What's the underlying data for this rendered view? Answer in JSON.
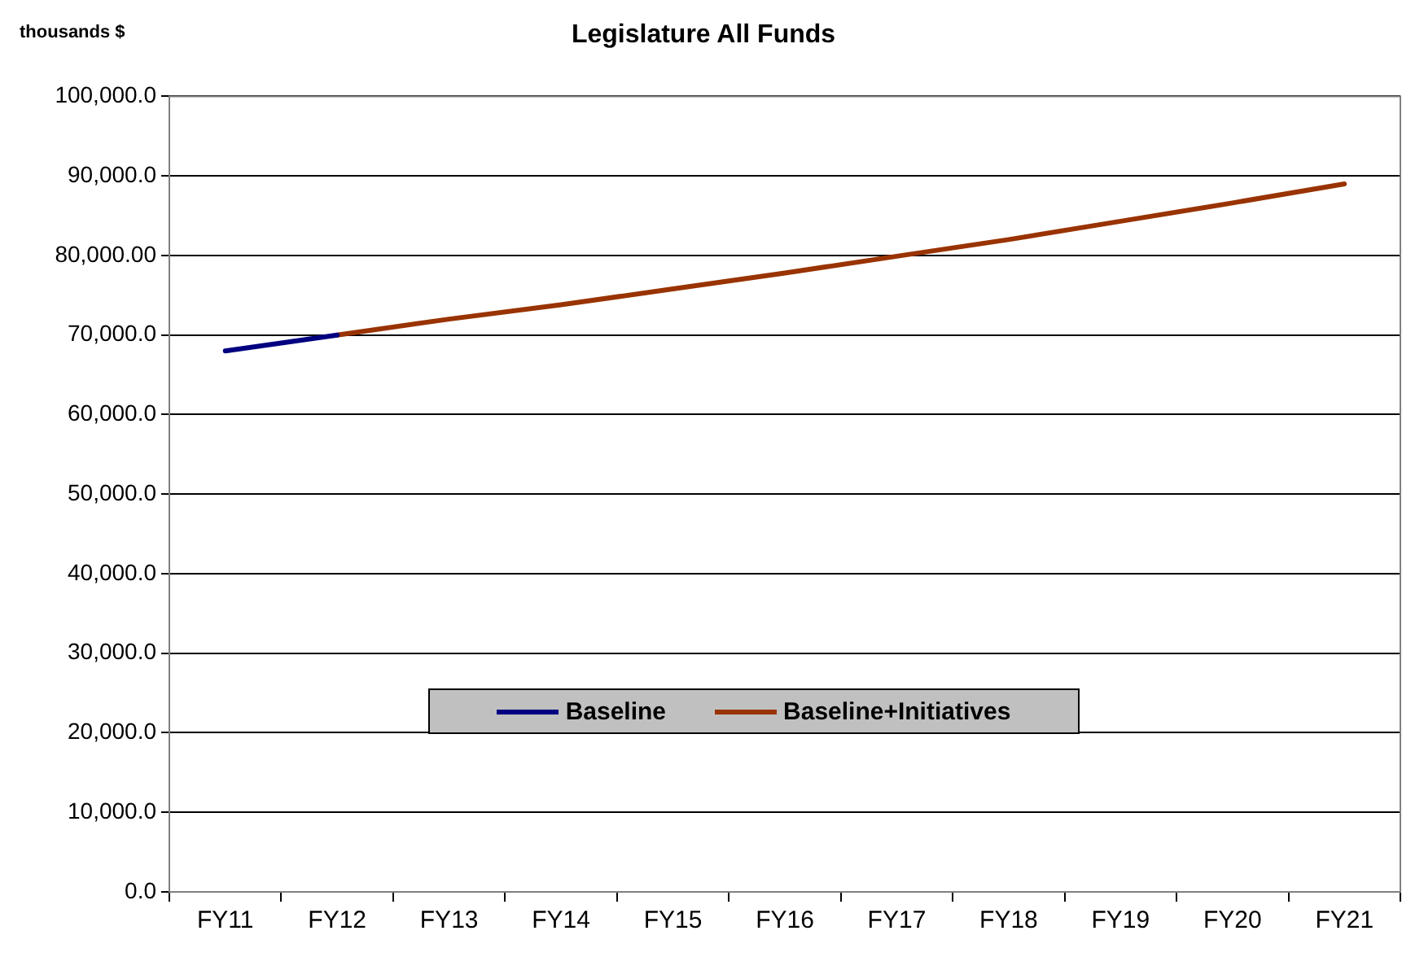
{
  "chart_data": {
    "type": "line",
    "title": "Legislature All Funds",
    "ylabel": "thousands $",
    "categories": [
      "FY11",
      "FY12",
      "FY13",
      "FY14",
      "FY15",
      "FY16",
      "FY17",
      "FY18",
      "FY19",
      "FY20",
      "FY21"
    ],
    "series": [
      {
        "name": "Baseline",
        "color": "#000080",
        "values": [
          68000,
          70000,
          null,
          null,
          null,
          null,
          null,
          null,
          null,
          null,
          null
        ]
      },
      {
        "name": "Baseline+Initiatives",
        "color": "#993300",
        "values": [
          null,
          70000,
          72000,
          73800,
          75800,
          77800,
          79900,
          82000,
          84300,
          86600,
          89000
        ]
      }
    ],
    "ylim": [
      0,
      100000
    ],
    "yticks": [
      {
        "value": 0,
        "label": "0.0"
      },
      {
        "value": 10000,
        "label": "10,000.0"
      },
      {
        "value": 20000,
        "label": "20,000.0"
      },
      {
        "value": 30000,
        "label": "30,000.0"
      },
      {
        "value": 40000,
        "label": "40,000.0"
      },
      {
        "value": 50000,
        "label": "50,000.0"
      },
      {
        "value": 60000,
        "label": "60,000.0"
      },
      {
        "value": 70000,
        "label": "70,000.0"
      },
      {
        "value": 80000,
        "label": "80,000.00"
      },
      {
        "value": 90000,
        "label": "90,000.0"
      },
      {
        "value": 100000,
        "label": "100,000.0"
      }
    ],
    "grid": "y",
    "legend": "bottom",
    "marker": "none",
    "line_style": "solid"
  }
}
